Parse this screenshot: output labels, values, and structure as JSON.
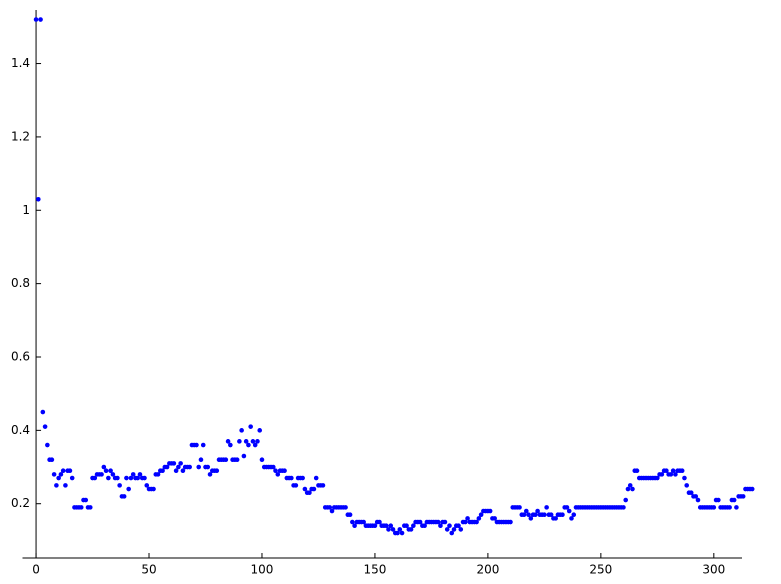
{
  "chart_data": {
    "type": "scatter",
    "color": "#0000ff",
    "xlim": [
      -6,
      320
    ],
    "ylim": [
      0.052,
      1.546
    ],
    "xticks": [
      0,
      50,
      100,
      150,
      200,
      250,
      300
    ],
    "yticks": [
      0.2,
      0.4,
      0.6,
      0.8,
      1,
      1.2,
      1.4
    ],
    "x": [
      0,
      1,
      2,
      3,
      4,
      5,
      6,
      7,
      8,
      9,
      10,
      11,
      12,
      13,
      14,
      15,
      16,
      17,
      18,
      19,
      20,
      21,
      22,
      23,
      24,
      25,
      26,
      27,
      28,
      29,
      30,
      31,
      32,
      33,
      34,
      35,
      36,
      37,
      38,
      39,
      40,
      41,
      42,
      43,
      44,
      45,
      46,
      47,
      48,
      49,
      50,
      51,
      52,
      53,
      54,
      55,
      56,
      57,
      58,
      59,
      60,
      61,
      62,
      63,
      64,
      65,
      66,
      67,
      68,
      69,
      70,
      71,
      72,
      73,
      74,
      75,
      76,
      77,
      78,
      79,
      80,
      81,
      82,
      83,
      84,
      85,
      86,
      87,
      88,
      89,
      90,
      91,
      92,
      93,
      94,
      95,
      96,
      97,
      98,
      99,
      100,
      101,
      102,
      103,
      104,
      105,
      106,
      107,
      108,
      109,
      110,
      111,
      112,
      113,
      114,
      115,
      116,
      117,
      118,
      119,
      120,
      121,
      122,
      123,
      124,
      125,
      126,
      127,
      128,
      129,
      130,
      131,
      132,
      133,
      134,
      135,
      136,
      137,
      138,
      139,
      140,
      141,
      142,
      143,
      144,
      145,
      146,
      147,
      148,
      149,
      150,
      151,
      152,
      153,
      154,
      155,
      156,
      157,
      158,
      159,
      160,
      161,
      162,
      163,
      164,
      165,
      166,
      167,
      168,
      169,
      170,
      171,
      172,
      173,
      174,
      175,
      176,
      177,
      178,
      179,
      180,
      181,
      182,
      183,
      184,
      185,
      186,
      187,
      188,
      189,
      190,
      191,
      192,
      193,
      194,
      195,
      196,
      197,
      198,
      199,
      200,
      201,
      202,
      203,
      204,
      205,
      206,
      207,
      208,
      209,
      210,
      211,
      212,
      213,
      214,
      215,
      216,
      217,
      218,
      219,
      220,
      221,
      222,
      223,
      224,
      225,
      226,
      227,
      228,
      229,
      230,
      231,
      232,
      233,
      234,
      235,
      236,
      237,
      238,
      239,
      240,
      241,
      242,
      243,
      244,
      245,
      246,
      247,
      248,
      249,
      250,
      251,
      252,
      253,
      254,
      255,
      256,
      257,
      258,
      259,
      260,
      261,
      262,
      263,
      264,
      265,
      266,
      267,
      268,
      269,
      270,
      271,
      272,
      273,
      274,
      275,
      276,
      277,
      278,
      279,
      280,
      281,
      282,
      283,
      284,
      285,
      286,
      287,
      288,
      289,
      290,
      291,
      292,
      293,
      294,
      295,
      296,
      297,
      298,
      299,
      300,
      301,
      302,
      303,
      304,
      305,
      306,
      307,
      308,
      309,
      310,
      311,
      312,
      313,
      314,
      315,
      316,
      317
    ],
    "values": [
      1.52,
      1.03,
      1.52,
      0.45,
      0.41,
      0.36,
      0.32,
      0.32,
      0.28,
      0.25,
      0.27,
      0.28,
      0.29,
      0.25,
      0.29,
      0.29,
      0.27,
      0.19,
      0.19,
      0.19,
      0.19,
      0.21,
      0.21,
      0.19,
      0.19,
      0.27,
      0.27,
      0.28,
      0.28,
      0.28,
      0.3,
      0.29,
      0.27,
      0.29,
      0.28,
      0.27,
      0.27,
      0.25,
      0.22,
      0.22,
      0.27,
      0.24,
      0.27,
      0.28,
      0.27,
      0.27,
      0.28,
      0.27,
      0.27,
      0.25,
      0.24,
      0.24,
      0.24,
      0.28,
      0.28,
      0.29,
      0.29,
      0.3,
      0.3,
      0.31,
      0.31,
      0.31,
      0.29,
      0.3,
      0.31,
      0.29,
      0.3,
      0.3,
      0.3,
      0.36,
      0.36,
      0.36,
      0.3,
      0.32,
      0.36,
      0.3,
      0.3,
      0.28,
      0.29,
      0.29,
      0.29,
      0.32,
      0.32,
      0.32,
      0.32,
      0.37,
      0.36,
      0.32,
      0.32,
      0.32,
      0.37,
      0.4,
      0.33,
      0.37,
      0.36,
      0.41,
      0.37,
      0.36,
      0.37,
      0.4,
      0.32,
      0.3,
      0.3,
      0.3,
      0.3,
      0.3,
      0.29,
      0.28,
      0.29,
      0.29,
      0.29,
      0.27,
      0.27,
      0.27,
      0.25,
      0.25,
      0.27,
      0.27,
      0.27,
      0.24,
      0.23,
      0.23,
      0.24,
      0.24,
      0.27,
      0.25,
      0.25,
      0.25,
      0.19,
      0.19,
      0.19,
      0.18,
      0.19,
      0.19,
      0.19,
      0.19,
      0.19,
      0.19,
      0.17,
      0.17,
      0.15,
      0.14,
      0.15,
      0.15,
      0.15,
      0.15,
      0.14,
      0.14,
      0.14,
      0.14,
      0.14,
      0.15,
      0.15,
      0.14,
      0.14,
      0.14,
      0.13,
      0.14,
      0.13,
      0.12,
      0.12,
      0.13,
      0.12,
      0.14,
      0.14,
      0.13,
      0.13,
      0.14,
      0.15,
      0.15,
      0.15,
      0.14,
      0.14,
      0.15,
      0.15,
      0.15,
      0.15,
      0.15,
      0.15,
      0.14,
      0.15,
      0.15,
      0.13,
      0.14,
      0.12,
      0.13,
      0.14,
      0.14,
      0.13,
      0.15,
      0.15,
      0.16,
      0.15,
      0.15,
      0.15,
      0.15,
      0.16,
      0.17,
      0.18,
      0.18,
      0.18,
      0.18,
      0.16,
      0.16,
      0.15,
      0.15,
      0.15,
      0.15,
      0.15,
      0.15,
      0.15,
      0.19,
      0.19,
      0.19,
      0.19,
      0.17,
      0.17,
      0.18,
      0.17,
      0.16,
      0.17,
      0.17,
      0.18,
      0.17,
      0.17,
      0.17,
      0.19,
      0.17,
      0.17,
      0.16,
      0.16,
      0.17,
      0.17,
      0.17,
      0.19,
      0.19,
      0.18,
      0.16,
      0.17,
      0.19,
      0.19,
      0.19,
      0.19,
      0.19,
      0.19,
      0.19,
      0.19,
      0.19,
      0.19,
      0.19,
      0.19,
      0.19,
      0.19,
      0.19,
      0.19,
      0.19,
      0.19,
      0.19,
      0.19,
      0.19,
      0.19,
      0.21,
      0.24,
      0.25,
      0.24,
      0.29,
      0.29,
      0.27,
      0.27,
      0.27,
      0.27,
      0.27,
      0.27,
      0.27,
      0.27,
      0.27,
      0.28,
      0.28,
      0.29,
      0.29,
      0.28,
      0.28,
      0.29,
      0.28,
      0.29,
      0.29,
      0.29,
      0.27,
      0.25,
      0.23,
      0.23,
      0.22,
      0.22,
      0.21,
      0.19,
      0.19,
      0.19,
      0.19,
      0.19,
      0.19,
      0.19,
      0.21,
      0.21,
      0.19,
      0.19,
      0.19,
      0.19,
      0.19,
      0.21,
      0.21,
      0.19,
      0.22,
      0.22,
      0.22,
      0.24,
      0.24,
      0.24,
      0.24
    ]
  }
}
